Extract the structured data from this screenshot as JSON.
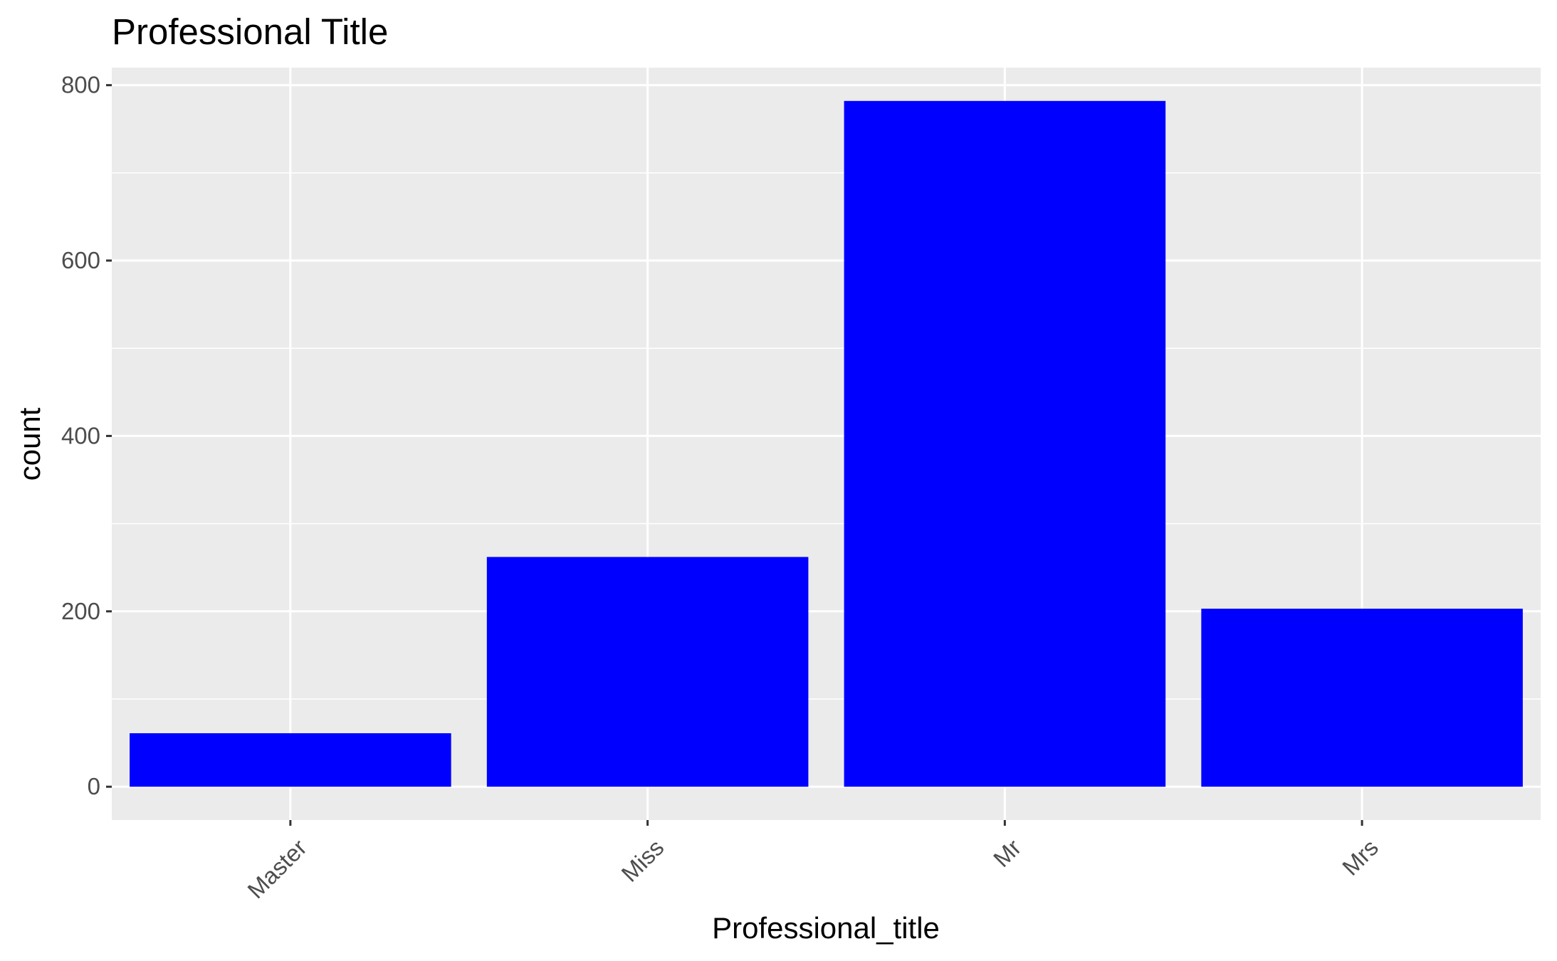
{
  "chart_data": {
    "type": "bar",
    "title": "Professional Title",
    "xlabel": "Professional_title",
    "ylabel": "count",
    "categories": [
      "Master",
      "Miss",
      "Mr",
      "Mrs"
    ],
    "values": [
      61,
      262,
      782,
      203
    ],
    "ylim": [
      -38,
      820
    ],
    "yticks": [
      0,
      200,
      400,
      600,
      800
    ],
    "grid": true,
    "legend": "none",
    "x_tick_rotation_deg": -45,
    "colors": {
      "bar": "#0000ff",
      "panel": "#ebebeb",
      "grid": "#ffffff",
      "tick": "#333333"
    }
  }
}
